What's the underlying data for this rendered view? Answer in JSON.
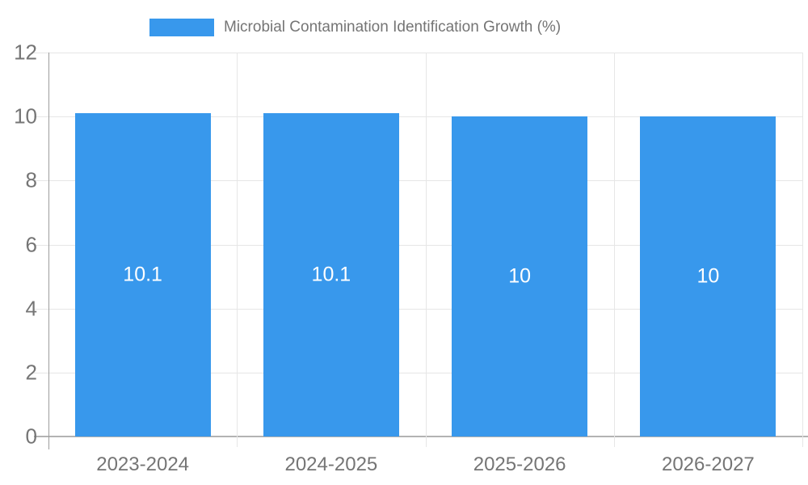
{
  "legend": {
    "series_label": "Microbial Contamination Identification Growth (%)"
  },
  "chart_data": {
    "type": "bar",
    "title": "Microbial Contamination Identification Growth (%)",
    "categories": [
      "2023-2024",
      "2024-2025",
      "2025-2026",
      "2026-2027"
    ],
    "values": [
      10.1,
      10.1,
      10,
      10
    ],
    "bar_labels": [
      "10.1",
      "10.1",
      "10",
      "10"
    ],
    "xlabel": "",
    "ylabel": "",
    "ylim": [
      0,
      12
    ],
    "ytick_step": 2,
    "ytick_labels": [
      "0",
      "2",
      "4",
      "6",
      "8",
      "10",
      "12"
    ],
    "grid": true,
    "legend_position": "top-center",
    "colors": {
      "bar": "#3898ec",
      "bar_label_text": "#ffffff",
      "grid": "#e6e6e6",
      "axis_line": "#9e9e9e",
      "baseline": "#b3b3b3",
      "tick_text": "#757575",
      "legend_text": "#757575"
    }
  }
}
